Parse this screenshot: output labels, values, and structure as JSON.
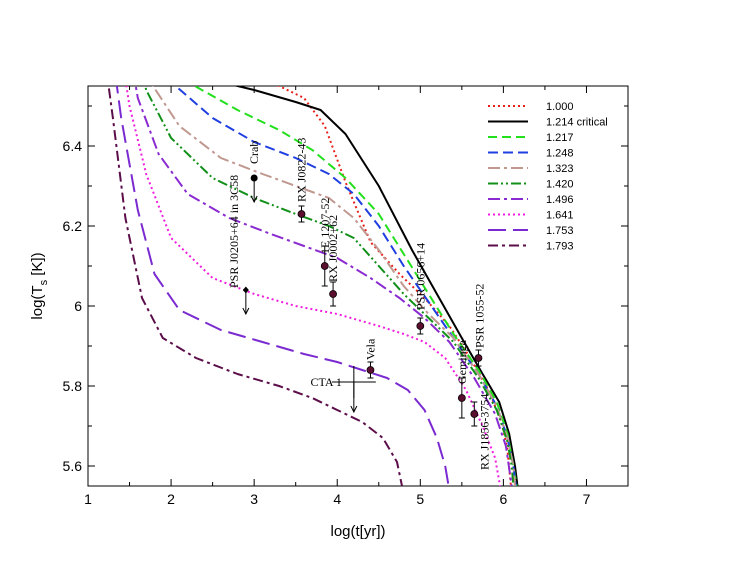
{
  "chart_data": {
    "type": "line",
    "xlabel": "log(t[yr])",
    "ylabel_main": "log(T",
    "ylabel_sub": "s",
    "ylabel_end": " [K])",
    "xlim": [
      1,
      7.5
    ],
    "ylim": [
      5.55,
      6.55
    ],
    "xticks": [
      1,
      2,
      3,
      4,
      5,
      6,
      7
    ],
    "yticks": [
      5.6,
      5.8,
      6.0,
      6.2,
      6.4
    ],
    "ytick_labels": [
      "5.6",
      "5.8",
      "6",
      "6.2",
      "6.4"
    ],
    "legend_position": "top-right",
    "series": [
      {
        "name": "1.000",
        "color": "#e8201a",
        "dash": "2,3",
        "points": [
          [
            1.4,
            6.7
          ],
          [
            2.0,
            6.62
          ],
          [
            3.0,
            6.58
          ],
          [
            3.6,
            6.52
          ],
          [
            3.85,
            6.45
          ],
          [
            4.1,
            6.31
          ],
          [
            4.4,
            6.16
          ],
          [
            4.75,
            6.08
          ],
          [
            5.05,
            6.02
          ],
          [
            5.35,
            5.95
          ],
          [
            5.6,
            5.87
          ],
          [
            5.82,
            5.79
          ],
          [
            5.98,
            5.71
          ],
          [
            6.05,
            5.64
          ],
          [
            6.09,
            5.55
          ]
        ]
      },
      {
        "name": "1.214 critical",
        "color": "#000000",
        "dash": "",
        "points": [
          [
            1.6,
            6.7
          ],
          [
            2.5,
            6.565
          ],
          [
            3.0,
            6.54
          ],
          [
            3.5,
            6.51
          ],
          [
            3.8,
            6.49
          ],
          [
            4.1,
            6.43
          ],
          [
            4.5,
            6.3
          ],
          [
            4.9,
            6.14
          ],
          [
            5.2,
            6.03
          ],
          [
            5.5,
            5.92
          ],
          [
            5.75,
            5.83
          ],
          [
            5.95,
            5.76
          ],
          [
            6.07,
            5.68
          ],
          [
            6.14,
            5.6
          ],
          [
            6.17,
            5.55
          ]
        ]
      },
      {
        "name": "1.217",
        "color": "#22e01c",
        "dash": "9,5",
        "points": [
          [
            1.6,
            6.7
          ],
          [
            2.2,
            6.56
          ],
          [
            2.8,
            6.49
          ],
          [
            3.3,
            6.44
          ],
          [
            3.7,
            6.39
          ],
          [
            4.1,
            6.32
          ],
          [
            4.5,
            6.23
          ],
          [
            4.8,
            6.13
          ],
          [
            5.1,
            6.03
          ],
          [
            5.4,
            5.93
          ],
          [
            5.7,
            5.84
          ],
          [
            5.92,
            5.76
          ],
          [
            6.05,
            5.68
          ],
          [
            6.12,
            5.6
          ],
          [
            6.16,
            5.55
          ]
        ]
      },
      {
        "name": "1.248",
        "color": "#1f3fe0",
        "dash": "10,5",
        "points": [
          [
            1.6,
            6.7
          ],
          [
            2.0,
            6.56
          ],
          [
            2.5,
            6.47
          ],
          [
            3.0,
            6.41
          ],
          [
            3.5,
            6.37
          ],
          [
            3.9,
            6.33
          ],
          [
            4.2,
            6.28
          ],
          [
            4.5,
            6.2
          ],
          [
            4.8,
            6.1
          ],
          [
            5.1,
            6.01
          ],
          [
            5.4,
            5.92
          ],
          [
            5.7,
            5.83
          ],
          [
            5.92,
            5.75
          ],
          [
            6.05,
            5.67
          ],
          [
            6.12,
            5.6
          ],
          [
            6.15,
            5.55
          ]
        ]
      },
      {
        "name": "1.323",
        "color": "#c09890",
        "dash": "12,4,3,4",
        "points": [
          [
            1.5,
            6.7
          ],
          [
            1.75,
            6.56
          ],
          [
            2.1,
            6.45
          ],
          [
            2.6,
            6.37
          ],
          [
            3.1,
            6.33
          ],
          [
            3.5,
            6.3
          ],
          [
            3.9,
            6.27
          ],
          [
            4.2,
            6.22
          ],
          [
            4.5,
            6.14
          ],
          [
            4.8,
            6.05
          ],
          [
            5.1,
            5.98
          ],
          [
            5.4,
            5.92
          ],
          [
            5.7,
            5.83
          ],
          [
            5.92,
            5.75
          ],
          [
            6.05,
            5.67
          ],
          [
            6.12,
            5.6
          ],
          [
            6.14,
            5.55
          ]
        ]
      },
      {
        "name": "1.420",
        "color": "#109018",
        "dash": "10,3,2,3,2,3",
        "points": [
          [
            1.5,
            6.7
          ],
          [
            1.7,
            6.54
          ],
          [
            2.0,
            6.42
          ],
          [
            2.5,
            6.32
          ],
          [
            3.0,
            6.27
          ],
          [
            3.5,
            6.23
          ],
          [
            3.9,
            6.2
          ],
          [
            4.2,
            6.17
          ],
          [
            4.5,
            6.1
          ],
          [
            4.8,
            6.03
          ],
          [
            5.1,
            5.97
          ],
          [
            5.4,
            5.91
          ],
          [
            5.7,
            5.82
          ],
          [
            5.92,
            5.74
          ],
          [
            6.05,
            5.66
          ],
          [
            6.1,
            5.6
          ],
          [
            6.12,
            5.55
          ]
        ]
      },
      {
        "name": "1.496",
        "color": "#8a2ad0",
        "dash": "12,4,3,4",
        "points": [
          [
            1.45,
            6.7
          ],
          [
            1.6,
            6.52
          ],
          [
            1.85,
            6.38
          ],
          [
            2.2,
            6.28
          ],
          [
            2.7,
            6.22
          ],
          [
            3.2,
            6.18
          ],
          [
            3.6,
            6.15
          ],
          [
            4.0,
            6.12
          ],
          [
            4.4,
            6.07
          ],
          [
            4.75,
            6.02
          ],
          [
            5.05,
            5.97
          ],
          [
            5.35,
            5.91
          ],
          [
            5.65,
            5.82
          ],
          [
            5.9,
            5.73
          ],
          [
            6.03,
            5.65
          ],
          [
            6.08,
            5.58
          ],
          [
            6.1,
            5.55
          ]
        ]
      },
      {
        "name": "1.641",
        "color": "#f01ce0",
        "dash": "2,3",
        "points": [
          [
            1.35,
            6.7
          ],
          [
            1.5,
            6.5
          ],
          [
            1.7,
            6.33
          ],
          [
            2.0,
            6.17
          ],
          [
            2.5,
            6.07
          ],
          [
            3.0,
            6.03
          ],
          [
            3.5,
            6.0
          ],
          [
            4.0,
            5.98
          ],
          [
            4.5,
            5.95
          ],
          [
            4.8,
            5.93
          ],
          [
            5.05,
            5.91
          ],
          [
            5.3,
            5.87
          ],
          [
            5.55,
            5.79
          ],
          [
            5.75,
            5.7
          ],
          [
            5.9,
            5.62
          ],
          [
            5.96,
            5.55
          ]
        ]
      },
      {
        "name": "1.753",
        "color": "#7a2ad0",
        "dash": "18,7",
        "points": [
          [
            1.25,
            6.7
          ],
          [
            1.4,
            6.47
          ],
          [
            1.6,
            6.24
          ],
          [
            1.8,
            6.08
          ],
          [
            2.1,
            5.99
          ],
          [
            2.6,
            5.94
          ],
          [
            3.1,
            5.91
          ],
          [
            3.6,
            5.88
          ],
          [
            4.0,
            5.86
          ],
          [
            4.3,
            5.84
          ],
          [
            4.6,
            5.82
          ],
          [
            4.85,
            5.79
          ],
          [
            5.05,
            5.74
          ],
          [
            5.2,
            5.67
          ],
          [
            5.3,
            5.6
          ],
          [
            5.34,
            5.55
          ]
        ]
      },
      {
        "name": "1.793",
        "color": "#5c0e4a",
        "dash": "10,4,3,4",
        "points": [
          [
            1.15,
            6.7
          ],
          [
            1.3,
            6.47
          ],
          [
            1.45,
            6.22
          ],
          [
            1.65,
            6.02
          ],
          [
            1.9,
            5.92
          ],
          [
            2.3,
            5.87
          ],
          [
            2.8,
            5.83
          ],
          [
            3.3,
            5.8
          ],
          [
            3.7,
            5.77
          ],
          [
            4.0,
            5.74
          ],
          [
            4.3,
            5.71
          ],
          [
            4.55,
            5.67
          ],
          [
            4.72,
            5.61
          ],
          [
            4.78,
            5.55
          ]
        ]
      }
    ],
    "observations": [
      {
        "name": "Crab",
        "x": 3.0,
        "y": 6.32,
        "upper_limit": true,
        "marker": "filled-circle"
      },
      {
        "name": "RX J0822-43",
        "x": 3.57,
        "y": 6.23,
        "yerr": 0.02,
        "marker": "circle"
      },
      {
        "name": "1E 1207-52",
        "x": 3.85,
        "y": 6.1,
        "yerr": 0.05,
        "marker": "circle"
      },
      {
        "name": "RX J0002+62",
        "x": 3.95,
        "y": 6.03,
        "yerr": 0.03,
        "marker": "circle"
      },
      {
        "name": "PSR J0205+64 in 3C58",
        "x": 2.9,
        "y": 6.04,
        "upper_limit": true,
        "marker": "diamond"
      },
      {
        "name": "Vela",
        "x": 4.4,
        "y": 5.84,
        "yerr": 0.02,
        "marker": "circle"
      },
      {
        "name": "CTA 1",
        "x": 4.2,
        "y": 5.81,
        "upper_limit": true,
        "marker": "cross"
      },
      {
        "name": "PSR 0656+14",
        "x": 5.0,
        "y": 5.95,
        "yerr": 0.02,
        "marker": "circle"
      },
      {
        "name": "Geminga",
        "x": 5.5,
        "y": 5.77,
        "yerr": 0.05,
        "marker": "circle"
      },
      {
        "name": "PSR 1055-52",
        "x": 5.7,
        "y": 5.87,
        "yerr": 0.02,
        "marker": "circle"
      },
      {
        "name": "RX J1856-3754",
        "x": 5.65,
        "y": 5.73,
        "yerr": 0.03,
        "marker": "circle"
      }
    ]
  }
}
